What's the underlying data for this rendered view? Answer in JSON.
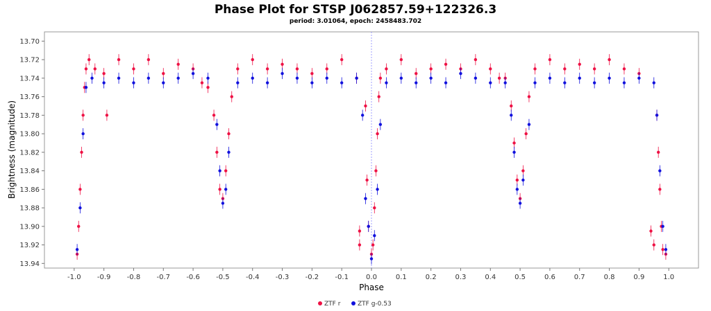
{
  "chart_data": {
    "type": "scatter",
    "title": "Phase Plot for STSP J062857.59+122326.3",
    "subtitle": "period: 3.01064, epoch: 2458483.702",
    "xlabel": "Phase",
    "ylabel": "Brightness (magnitude)",
    "xlim": [
      -1.1,
      1.1
    ],
    "ylim": [
      13.945,
      13.69
    ],
    "y_inverted": true,
    "x_ticks": [
      "-1.0",
      "-0.9",
      "-0.8",
      "-0.7",
      "-0.6",
      "-0.5",
      "-0.4",
      "-0.3",
      "-0.2",
      "-0.1",
      "0.0",
      "0.1",
      "0.2",
      "0.3",
      "0.4",
      "0.5",
      "0.6",
      "0.7",
      "0.8",
      "0.9",
      "1.0"
    ],
    "y_ticks": [
      "13.70",
      "13.72",
      "13.74",
      "13.76",
      "13.78",
      "13.80",
      "13.82",
      "13.84",
      "13.86",
      "13.88",
      "13.90",
      "13.92",
      "13.94"
    ],
    "reference_line_x": 0.0,
    "grid": false,
    "legend_position": "bottom",
    "series": [
      {
        "name": "ZTF r",
        "color": "#ee1144",
        "points": [
          [
            -0.99,
            13.93
          ],
          [
            -0.985,
            13.9
          ],
          [
            -0.98,
            13.86
          ],
          [
            -0.975,
            13.82
          ],
          [
            -0.97,
            13.78
          ],
          [
            -0.965,
            13.75
          ],
          [
            -0.96,
            13.73
          ],
          [
            -0.95,
            13.72
          ],
          [
            -0.93,
            13.73
          ],
          [
            -0.9,
            13.735
          ],
          [
            -0.89,
            13.78
          ],
          [
            -0.85,
            13.72
          ],
          [
            -0.8,
            13.73
          ],
          [
            -0.75,
            13.72
          ],
          [
            -0.7,
            13.735
          ],
          [
            -0.65,
            13.725
          ],
          [
            -0.6,
            13.73
          ],
          [
            -0.57,
            13.745
          ],
          [
            -0.55,
            13.75
          ],
          [
            -0.53,
            13.78
          ],
          [
            -0.52,
            13.82
          ],
          [
            -0.51,
            13.86
          ],
          [
            -0.5,
            13.87
          ],
          [
            -0.49,
            13.84
          ],
          [
            -0.48,
            13.8
          ],
          [
            -0.47,
            13.76
          ],
          [
            -0.45,
            13.73
          ],
          [
            -0.4,
            13.72
          ],
          [
            -0.35,
            13.73
          ],
          [
            -0.3,
            13.725
          ],
          [
            -0.25,
            13.73
          ],
          [
            -0.2,
            13.735
          ],
          [
            -0.15,
            13.73
          ],
          [
            -0.1,
            13.72
          ],
          [
            -0.05,
            13.74
          ],
          [
            -0.04,
            13.905
          ],
          [
            -0.04,
            13.92
          ],
          [
            -0.02,
            13.77
          ],
          [
            -0.015,
            13.85
          ],
          [
            -0.01,
            13.9
          ],
          [
            0.0,
            13.93
          ],
          [
            0.005,
            13.92
          ],
          [
            0.01,
            13.88
          ],
          [
            0.015,
            13.84
          ],
          [
            0.02,
            13.8
          ],
          [
            0.025,
            13.76
          ],
          [
            0.03,
            13.74
          ],
          [
            0.05,
            13.73
          ],
          [
            0.1,
            13.72
          ],
          [
            0.15,
            13.735
          ],
          [
            0.2,
            13.73
          ],
          [
            0.25,
            13.725
          ],
          [
            0.3,
            13.73
          ],
          [
            0.35,
            13.72
          ],
          [
            0.4,
            13.73
          ],
          [
            0.43,
            13.74
          ],
          [
            0.45,
            13.74
          ],
          [
            0.47,
            13.77
          ],
          [
            0.48,
            13.81
          ],
          [
            0.49,
            13.85
          ],
          [
            0.5,
            13.87
          ],
          [
            0.51,
            13.84
          ],
          [
            0.52,
            13.8
          ],
          [
            0.53,
            13.76
          ],
          [
            0.55,
            13.73
          ],
          [
            0.6,
            13.72
          ],
          [
            0.65,
            13.73
          ],
          [
            0.7,
            13.725
          ],
          [
            0.75,
            13.73
          ],
          [
            0.8,
            13.72
          ],
          [
            0.85,
            13.73
          ],
          [
            0.9,
            13.735
          ],
          [
            0.94,
            13.905
          ],
          [
            0.95,
            13.92
          ],
          [
            0.96,
            13.78
          ],
          [
            0.965,
            13.82
          ],
          [
            0.97,
            13.86
          ],
          [
            0.975,
            13.9
          ],
          [
            0.98,
            13.925
          ],
          [
            0.99,
            13.93
          ]
        ]
      },
      {
        "name": "ZTF g-0.53",
        "color": "#1111dd",
        "points": [
          [
            -0.99,
            13.925
          ],
          [
            -0.98,
            13.88
          ],
          [
            -0.97,
            13.8
          ],
          [
            -0.96,
            13.75
          ],
          [
            -0.94,
            13.74
          ],
          [
            -0.9,
            13.745
          ],
          [
            -0.85,
            13.74
          ],
          [
            -0.8,
            13.745
          ],
          [
            -0.75,
            13.74
          ],
          [
            -0.7,
            13.745
          ],
          [
            -0.65,
            13.74
          ],
          [
            -0.6,
            13.735
          ],
          [
            -0.55,
            13.74
          ],
          [
            -0.52,
            13.79
          ],
          [
            -0.51,
            13.84
          ],
          [
            -0.5,
            13.875
          ],
          [
            -0.49,
            13.86
          ],
          [
            -0.48,
            13.82
          ],
          [
            -0.45,
            13.745
          ],
          [
            -0.4,
            13.74
          ],
          [
            -0.35,
            13.745
          ],
          [
            -0.3,
            13.735
          ],
          [
            -0.25,
            13.74
          ],
          [
            -0.2,
            13.745
          ],
          [
            -0.15,
            13.74
          ],
          [
            -0.1,
            13.745
          ],
          [
            -0.05,
            13.74
          ],
          [
            -0.03,
            13.78
          ],
          [
            -0.02,
            13.87
          ],
          [
            -0.01,
            13.9
          ],
          [
            0.0,
            13.935
          ],
          [
            0.01,
            13.91
          ],
          [
            0.02,
            13.86
          ],
          [
            0.03,
            13.79
          ],
          [
            0.05,
            13.745
          ],
          [
            0.1,
            13.74
          ],
          [
            0.15,
            13.745
          ],
          [
            0.2,
            13.74
          ],
          [
            0.25,
            13.745
          ],
          [
            0.3,
            13.735
          ],
          [
            0.35,
            13.74
          ],
          [
            0.4,
            13.745
          ],
          [
            0.45,
            13.745
          ],
          [
            0.47,
            13.78
          ],
          [
            0.48,
            13.82
          ],
          [
            0.49,
            13.86
          ],
          [
            0.5,
            13.875
          ],
          [
            0.51,
            13.85
          ],
          [
            0.53,
            13.79
          ],
          [
            0.55,
            13.745
          ],
          [
            0.6,
            13.74
          ],
          [
            0.65,
            13.745
          ],
          [
            0.7,
            13.74
          ],
          [
            0.75,
            13.745
          ],
          [
            0.8,
            13.74
          ],
          [
            0.85,
            13.745
          ],
          [
            0.9,
            13.74
          ],
          [
            0.95,
            13.745
          ],
          [
            0.96,
            13.78
          ],
          [
            0.97,
            13.84
          ],
          [
            0.98,
            13.9
          ],
          [
            0.99,
            13.925
          ]
        ]
      }
    ]
  }
}
